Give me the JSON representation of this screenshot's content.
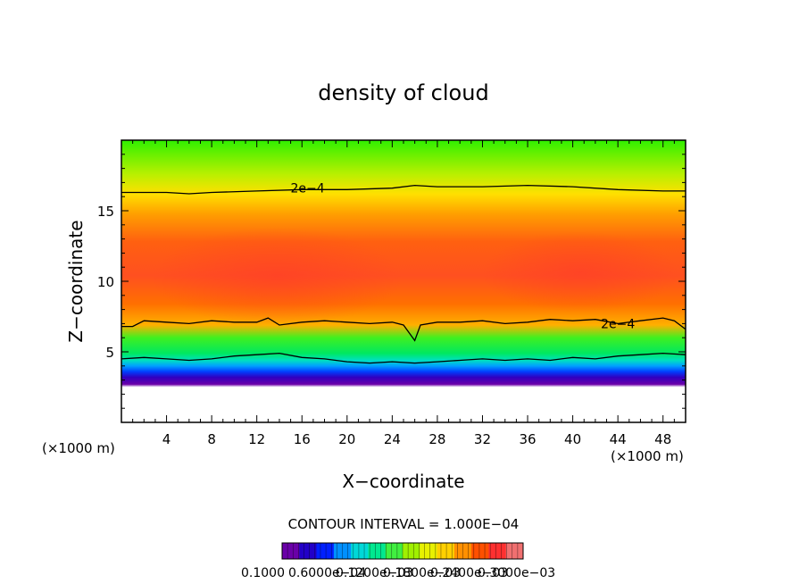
{
  "chart_data": {
    "type": "heatmap",
    "title": "density of cloud",
    "xlabel": "X−coordinate",
    "ylabel": "Z−coordinate",
    "x_unit_left": "(×1000 m)",
    "x_unit_right": "(×1000 m)",
    "xlim": [
      0,
      50
    ],
    "ylim": [
      0,
      20
    ],
    "x_ticks": [
      4,
      8,
      12,
      16,
      20,
      24,
      28,
      32,
      36,
      40,
      44,
      48
    ],
    "y_ticks": [
      5,
      10,
      15
    ],
    "contour_interval_label": "CONTOUR INTERVAL = 1.000E−04",
    "contour_labels": [
      {
        "text": "2e−4",
        "x": 16.5,
        "z": 16.6
      },
      {
        "text": "2e−4",
        "x": 44.0,
        "z": 7.0
      }
    ],
    "contour_lines": [
      {
        "level": 0.0002,
        "points": [
          [
            0,
            16.3
          ],
          [
            4,
            16.3
          ],
          [
            6,
            16.2
          ],
          [
            8,
            16.3
          ],
          [
            12,
            16.4
          ],
          [
            16,
            16.5
          ],
          [
            20,
            16.5
          ],
          [
            24,
            16.6
          ],
          [
            26,
            16.8
          ],
          [
            28,
            16.7
          ],
          [
            32,
            16.7
          ],
          [
            36,
            16.8
          ],
          [
            40,
            16.7
          ],
          [
            44,
            16.5
          ],
          [
            48,
            16.4
          ],
          [
            50,
            16.4
          ]
        ]
      },
      {
        "level": 0.0002,
        "points": [
          [
            0,
            6.8
          ],
          [
            1,
            6.8
          ],
          [
            2,
            7.2
          ],
          [
            4,
            7.1
          ],
          [
            6,
            7.0
          ],
          [
            8,
            7.2
          ],
          [
            10,
            7.1
          ],
          [
            12,
            7.1
          ],
          [
            13,
            7.4
          ],
          [
            14,
            6.9
          ],
          [
            16,
            7.1
          ],
          [
            18,
            7.2
          ],
          [
            20,
            7.1
          ],
          [
            22,
            7.0
          ],
          [
            24,
            7.1
          ],
          [
            25,
            6.9
          ],
          [
            26,
            5.8
          ],
          [
            26.5,
            6.9
          ],
          [
            28,
            7.1
          ],
          [
            30,
            7.1
          ],
          [
            32,
            7.2
          ],
          [
            34,
            7.0
          ],
          [
            36,
            7.1
          ],
          [
            38,
            7.3
          ],
          [
            40,
            7.2
          ],
          [
            42,
            7.3
          ],
          [
            44,
            7.0
          ],
          [
            46,
            7.2
          ],
          [
            48,
            7.4
          ],
          [
            49,
            7.2
          ],
          [
            50,
            6.6
          ]
        ]
      },
      {
        "level": 0.0001,
        "points": [
          [
            0,
            4.5
          ],
          [
            2,
            4.6
          ],
          [
            4,
            4.5
          ],
          [
            6,
            4.4
          ],
          [
            8,
            4.5
          ],
          [
            10,
            4.7
          ],
          [
            12,
            4.8
          ],
          [
            14,
            4.9
          ],
          [
            16,
            4.6
          ],
          [
            18,
            4.5
          ],
          [
            20,
            4.3
          ],
          [
            22,
            4.2
          ],
          [
            24,
            4.3
          ],
          [
            26,
            4.2
          ],
          [
            28,
            4.3
          ],
          [
            30,
            4.4
          ],
          [
            32,
            4.5
          ],
          [
            34,
            4.4
          ],
          [
            36,
            4.5
          ],
          [
            38,
            4.4
          ],
          [
            40,
            4.6
          ],
          [
            42,
            4.5
          ],
          [
            44,
            4.7
          ],
          [
            46,
            4.8
          ],
          [
            48,
            4.9
          ],
          [
            50,
            4.8
          ]
        ]
      }
    ],
    "colorbar": {
      "labels": [
        "0.1000",
        "0.6000e−04",
        "0.1200e−03",
        "0.1800e−03",
        "0.2400e−03",
        "0.3000e−03"
      ],
      "colors": [
        "#6a00a8",
        "#2200c8",
        "#0020ff",
        "#0090ff",
        "#00d8d8",
        "#00e890",
        "#40f040",
        "#a0f000",
        "#e8f000",
        "#ffd000",
        "#ff9000",
        "#ff5000",
        "#ff3030",
        "#f07070"
      ]
    }
  }
}
